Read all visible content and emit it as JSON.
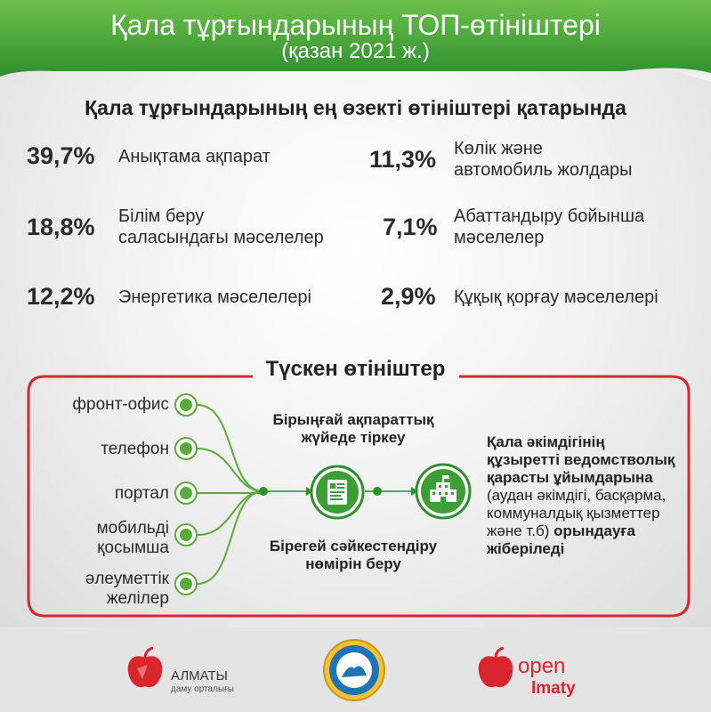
{
  "header": {
    "title": "Қала тұрғындарының ТОП-өтініштері",
    "subtitle": "(қазан 2021 ж.)"
  },
  "heading": "Қала тұрғындарының ең өзекті өтініштері қатарында",
  "stats": [
    {
      "percent": "39,7%",
      "label1": "Анықтама ақпарат",
      "label2": "",
      "value": 39.7
    },
    {
      "percent": "18,8%",
      "label1": "Білім беру",
      "label2": "саласындағы мәселелер",
      "value": 18.8
    },
    {
      "percent": "12,2%",
      "label1": "Энергетика мәселелері",
      "label2": "",
      "value": 12.2
    },
    {
      "percent": "11,3%",
      "label1": "Көлік және",
      "label2": "автомобиль жолдары",
      "value": 11.3
    },
    {
      "percent": "7,1%",
      "label1": "Абаттандыру бойынша",
      "label2": "мәселелер",
      "value": 7.1
    },
    {
      "percent": "2,9%",
      "label1": "Құқық қорғау мәселелері",
      "label2": "",
      "value": 2.9
    }
  ],
  "flow": {
    "title": "Түскен өтініштер",
    "sources": [
      {
        "line1": "фронт-офис",
        "line2": ""
      },
      {
        "line1": "телефон",
        "line2": ""
      },
      {
        "line1": "портал",
        "line2": ""
      },
      {
        "line1": "мобильді",
        "line2": "қосымша"
      },
      {
        "line1": "әлеуметтік",
        "line2": "желілер"
      }
    ],
    "register_line1": "Бірыңғай ақпараттық",
    "register_line2": "жүйеде тіркеу",
    "assign_line1": "Бірегей сәйкестендіру",
    "assign_line2": "нөмірін беру",
    "dest_bold1": "Қала әкімдігінің",
    "dest_bold2": "құзыретті ведомстволық",
    "dest_bold3": "қарасты ұйымдарына",
    "dest_normal1": "(аудан әкімдігі, басқарма,",
    "dest_normal2": "коммуналдық қызметтер",
    "dest_normal3": "және т.б)",
    "dest_bold4": "орындауға",
    "dest_bold5": "жіберіледі"
  },
  "footer": {
    "logo1_name": "АЛМАТЫ",
    "logo1_sub": "даму орталығы",
    "logo3_open": "open",
    "logo3_almaty": "lmaty"
  },
  "colors": {
    "green_dark": "#2f8f2f",
    "green_light": "#6cc04a",
    "red_frame": "#d9262e",
    "node_green": "#5bab3b"
  },
  "icons": [
    "document-scan-icon",
    "building-icon",
    "emblem-icon",
    "apple-logo-icon"
  ]
}
